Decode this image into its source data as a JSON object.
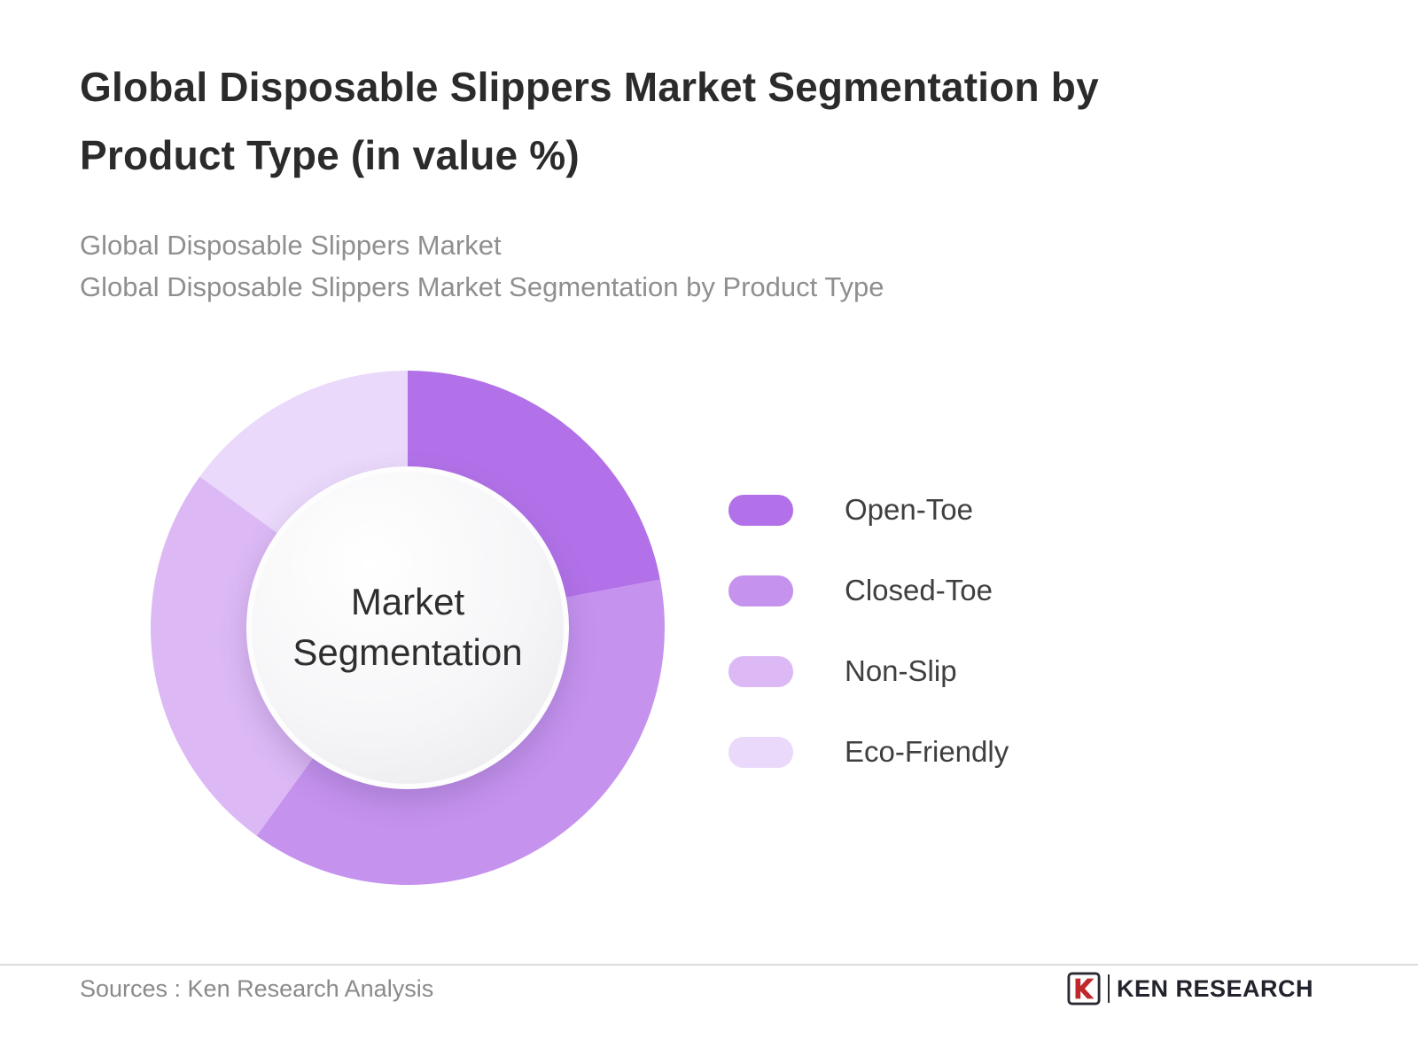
{
  "header": {
    "title": "Global Disposable Slippers Market Segmentation by Product Type (in value %)",
    "subtitle_line1": "Global Disposable Slippers Market",
    "subtitle_line2": "Global Disposable Slippers Market Segmentation by Product Type"
  },
  "chart_data": {
    "type": "pie",
    "variant": "donut",
    "title": "Global Disposable Slippers Market Segmentation by Product Type (in value %)",
    "center_label": "Market Segmentation",
    "values_unit": "percent of market value",
    "start_angle_deg": 0,
    "direction": "clockwise",
    "legend_position": "right",
    "data_labels_shown": false,
    "segments": [
      {
        "label": "Open-Toe",
        "value": 22,
        "color": "#b271e8"
      },
      {
        "label": "Closed-Toe",
        "value": 38,
        "color": "#c592ee"
      },
      {
        "label": "Non-Slip",
        "value": 25,
        "color": "#dcb9f5"
      },
      {
        "label": "Eco-Friendly",
        "value": 15,
        "color": "#ead9fa"
      }
    ]
  },
  "footer": {
    "sources": "Sources : Ken Research Analysis",
    "logo_mark": "K",
    "logo_text": "KEN RESEARCH"
  }
}
